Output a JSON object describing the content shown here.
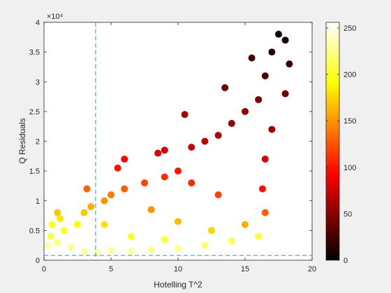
{
  "chart_data": {
    "type": "scatter",
    "xlabel": "Hotelling T^2",
    "ylabel": "Q Residuals",
    "y_exponent_label": "×10⁴",
    "xlim": [
      0,
      20
    ],
    "ylim": [
      0,
      40000
    ],
    "x_ticks": [
      "0",
      "5",
      "10",
      "15",
      "20"
    ],
    "y_ticks": [
      "0",
      "0.5",
      "1",
      "1.5",
      "2",
      "2.5",
      "3",
      "3.5",
      "4"
    ],
    "colorbar": {
      "colormap": "hot",
      "range": [
        0,
        256
      ],
      "ticks": [
        "0",
        "50",
        "100",
        "150",
        "200",
        "250"
      ]
    },
    "reference_lines": {
      "vertical_x": 3.85,
      "horizontal_y": 800,
      "style": "dashed",
      "color": "#2f8fcf"
    },
    "grid": false,
    "legend": "none",
    "points": [
      {
        "x": 0.3,
        "y": 2500,
        "c": 235
      },
      {
        "x": 1.0,
        "y": 3000,
        "c": 222
      },
      {
        "x": 2.0,
        "y": 2200,
        "c": 226
      },
      {
        "x": 3.0,
        "y": 1500,
        "c": 232
      },
      {
        "x": 4.0,
        "y": 1200,
        "c": 234
      },
      {
        "x": 5.0,
        "y": 1600,
        "c": 228
      },
      {
        "x": 6.5,
        "y": 1500,
        "c": 230
      },
      {
        "x": 8.0,
        "y": 1700,
        "c": 228
      },
      {
        "x": 10.0,
        "y": 2000,
        "c": 225
      },
      {
        "x": 12.0,
        "y": 2500,
        "c": 220
      },
      {
        "x": 14.0,
        "y": 3200,
        "c": 212
      },
      {
        "x": 16.0,
        "y": 4000,
        "c": 205
      },
      {
        "x": 0.5,
        "y": 4000,
        "c": 210
      },
      {
        "x": 1.5,
        "y": 5000,
        "c": 200
      },
      {
        "x": 2.5,
        "y": 6000,
        "c": 190
      },
      {
        "x": 0.6,
        "y": 6000,
        "c": 195
      },
      {
        "x": 1.2,
        "y": 7000,
        "c": 182
      },
      {
        "x": 3.0,
        "y": 8000,
        "c": 170
      },
      {
        "x": 3.5,
        "y": 9000,
        "c": 160
      },
      {
        "x": 4.5,
        "y": 10000,
        "c": 150
      },
      {
        "x": 5.0,
        "y": 11000,
        "c": 140
      },
      {
        "x": 6.0,
        "y": 12000,
        "c": 130
      },
      {
        "x": 7.5,
        "y": 13000,
        "c": 120
      },
      {
        "x": 9.0,
        "y": 14000,
        "c": 110
      },
      {
        "x": 10.0,
        "y": 15000,
        "c": 100
      },
      {
        "x": 5.5,
        "y": 15500,
        "c": 100
      },
      {
        "x": 6.0,
        "y": 17000,
        "c": 95
      },
      {
        "x": 8.5,
        "y": 18000,
        "c": 80
      },
      {
        "x": 9.0,
        "y": 18500,
        "c": 78
      },
      {
        "x": 11.0,
        "y": 19000,
        "c": 75
      },
      {
        "x": 12.0,
        "y": 20000,
        "c": 70
      },
      {
        "x": 13.0,
        "y": 21000,
        "c": 65
      },
      {
        "x": 14.0,
        "y": 23000,
        "c": 55
      },
      {
        "x": 15.0,
        "y": 25000,
        "c": 50
      },
      {
        "x": 16.0,
        "y": 27000,
        "c": 45
      },
      {
        "x": 16.5,
        "y": 31000,
        "c": 30
      },
      {
        "x": 17.0,
        "y": 35000,
        "c": 15
      },
      {
        "x": 17.5,
        "y": 38000,
        "c": 5
      },
      {
        "x": 18.0,
        "y": 37000,
        "c": 8
      },
      {
        "x": 18.3,
        "y": 33000,
        "c": 20
      },
      {
        "x": 18.0,
        "y": 28000,
        "c": 40
      },
      {
        "x": 17.0,
        "y": 22000,
        "c": 60
      },
      {
        "x": 16.5,
        "y": 17000,
        "c": 80
      },
      {
        "x": 16.3,
        "y": 12000,
        "c": 100
      },
      {
        "x": 16.5,
        "y": 8000,
        "c": 130
      },
      {
        "x": 15.0,
        "y": 6000,
        "c": 160
      },
      {
        "x": 12.5,
        "y": 5000,
        "c": 175
      },
      {
        "x": 10.0,
        "y": 6500,
        "c": 165
      },
      {
        "x": 8.0,
        "y": 8500,
        "c": 150
      },
      {
        "x": 13.0,
        "y": 11000,
        "c": 120
      },
      {
        "x": 11.0,
        "y": 13000,
        "c": 110
      },
      {
        "x": 4.5,
        "y": 6000,
        "c": 180
      },
      {
        "x": 6.5,
        "y": 4000,
        "c": 200
      },
      {
        "x": 9.0,
        "y": 3500,
        "c": 205
      },
      {
        "x": 10.5,
        "y": 24500,
        "c": 60
      },
      {
        "x": 13.5,
        "y": 29000,
        "c": 40
      },
      {
        "x": 15.5,
        "y": 34000,
        "c": 25
      },
      {
        "x": 1.0,
        "y": 8000,
        "c": 170
      },
      {
        "x": 3.2,
        "y": 12000,
        "c": 130
      }
    ]
  }
}
